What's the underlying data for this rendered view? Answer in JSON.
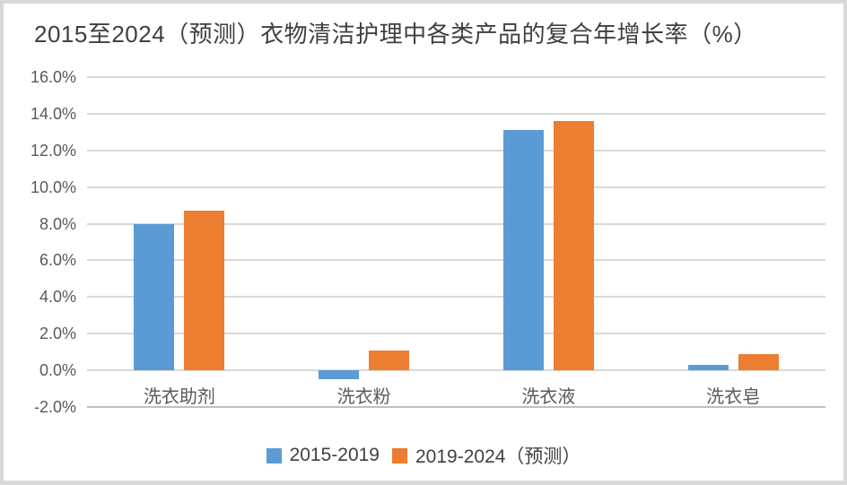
{
  "chart_data": {
    "type": "bar",
    "title": "2015至2024（预测）衣物清洁护理中各类产品的复合年增长率（%）",
    "categories": [
      "洗衣助剂",
      "洗衣粉",
      "洗衣液",
      "洗衣皂"
    ],
    "series": [
      {
        "name": "2015-2019",
        "color": "#5B9BD5",
        "values": [
          8.0,
          -0.5,
          13.1,
          0.3
        ]
      },
      {
        "name": "2019-2024（预测）",
        "color": "#ED7D31",
        "values": [
          8.7,
          1.1,
          13.6,
          0.9
        ]
      }
    ],
    "ylim": [
      -2,
      16
    ],
    "yticks": [
      {
        "value": 16,
        "label": "16.0%"
      },
      {
        "value": 14,
        "label": "14.0%"
      },
      {
        "value": 12,
        "label": "12.0%"
      },
      {
        "value": 10,
        "label": "10.0%"
      },
      {
        "value": 8,
        "label": "8.0%"
      },
      {
        "value": 6,
        "label": "6.0%"
      },
      {
        "value": 4,
        "label": "4.0%"
      },
      {
        "value": 2,
        "label": "2.0%"
      },
      {
        "value": 0,
        "label": "0.0%"
      },
      {
        "value": -2,
        "label": "-2.0%"
      }
    ],
    "grid": true,
    "legend_position": "bottom",
    "xlabel": "",
    "ylabel": ""
  },
  "style": {
    "title_color": "#3F3F3F",
    "axis_text_color": "#595959",
    "legend_text_color": "#404040",
    "gridline_color": "#D9D9D9",
    "axis_line_color": "#BFBFBF",
    "series_blue": "#5B9BD5",
    "series_orange": "#ED7D31",
    "background": "#FFFFFF",
    "border_color": "#D9D9D9"
  }
}
